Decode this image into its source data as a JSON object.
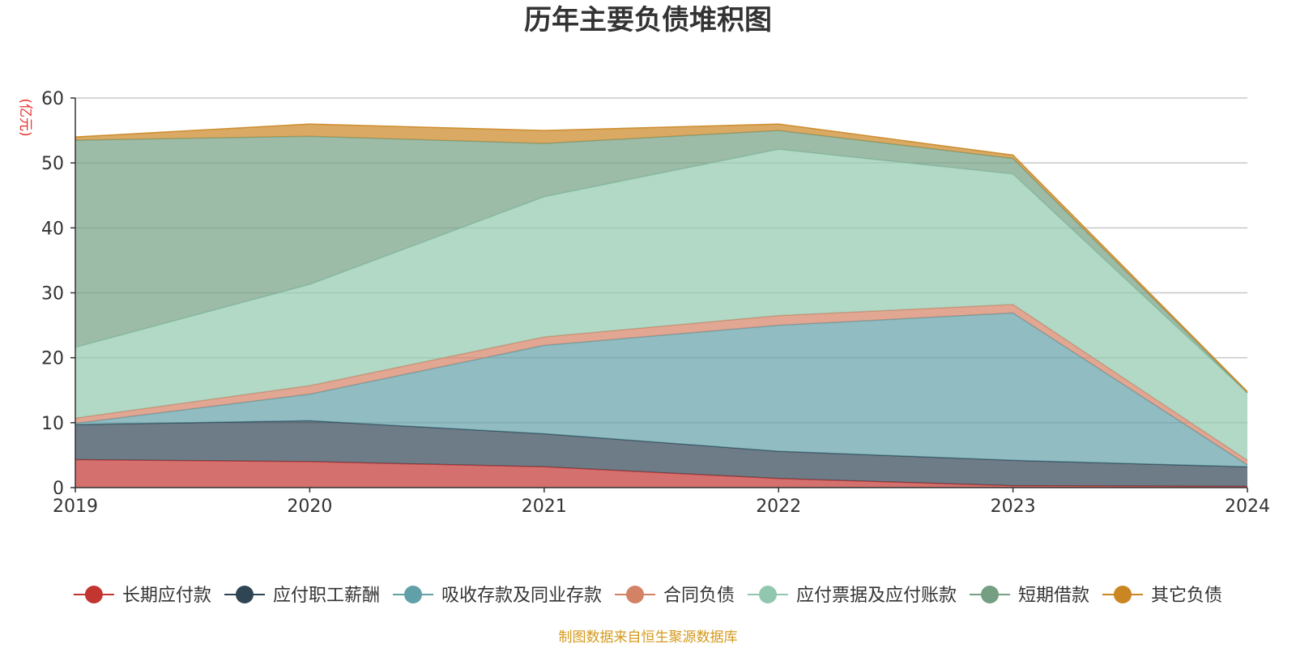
{
  "chart_data": {
    "type": "area",
    "stacked": true,
    "title": "历年主要负债堆积图",
    "y_unit_label": "(亿元)",
    "x": [
      "2019",
      "2020",
      "2021",
      "2022",
      "2023",
      "2024"
    ],
    "ylim": [
      0,
      60
    ],
    "yticks": [
      "0",
      "10",
      "20",
      "30",
      "40",
      "50",
      "60"
    ],
    "grid": true,
    "legend_position": "bottom",
    "series": [
      {
        "name": "长期应付款",
        "color": "#c23531",
        "values": [
          4.3,
          4.0,
          3.2,
          1.4,
          0.3,
          0.2
        ]
      },
      {
        "name": "应付职工薪酬",
        "color": "#2f4554",
        "values": [
          5.4,
          6.3,
          5.1,
          4.2,
          3.9,
          3.0
        ]
      },
      {
        "name": "吸收存款及同业存款",
        "color": "#61a0a8",
        "values": [
          0.2,
          4.1,
          13.6,
          19.4,
          22.7,
          0.3
        ]
      },
      {
        "name": "合同负债",
        "color": "#d48265",
        "values": [
          0.8,
          1.3,
          1.3,
          1.5,
          1.3,
          0.7
        ]
      },
      {
        "name": "应付票据及应付账款",
        "color": "#91c7ae",
        "values": [
          10.9,
          15.6,
          21.6,
          25.6,
          20.1,
          10.4
        ]
      },
      {
        "name": "短期借款",
        "color": "#749f83",
        "values": [
          31.9,
          22.8,
          8.2,
          2.9,
          2.4,
          0.0
        ]
      },
      {
        "name": "其它负债",
        "color": "#ca8622",
        "values": [
          0.5,
          1.9,
          2.0,
          1.0,
          0.5,
          0.2
        ]
      }
    ],
    "source": "制图数据来自恒生聚源数据库"
  }
}
